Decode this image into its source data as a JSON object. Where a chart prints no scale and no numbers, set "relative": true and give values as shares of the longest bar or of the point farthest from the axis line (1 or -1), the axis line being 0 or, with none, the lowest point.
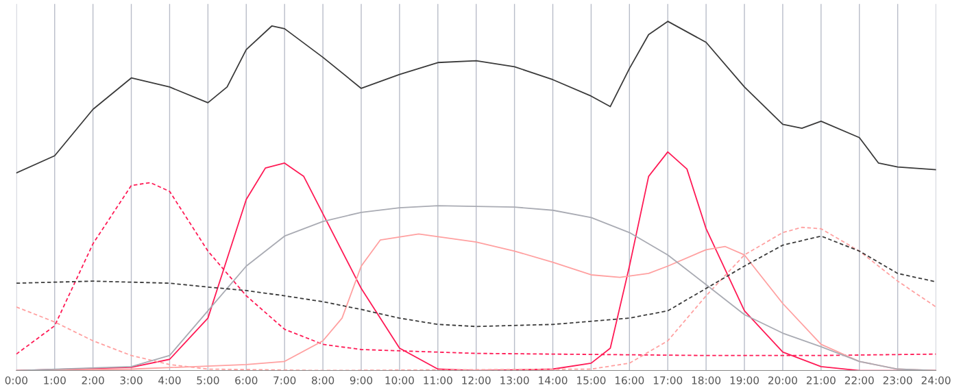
{
  "chart_data": {
    "type": "line",
    "relative": true,
    "grid": "x",
    "marker": "none",
    "xlim": [
      0,
      24
    ],
    "xticks": [
      {
        "value": 0,
        "label": "0:00"
      },
      {
        "value": 1,
        "label": "1:00"
      },
      {
        "value": 2,
        "label": "2:00"
      },
      {
        "value": 3,
        "label": "3:00"
      },
      {
        "value": 4,
        "label": "4:00"
      },
      {
        "value": 5,
        "label": "5:00"
      },
      {
        "value": 6,
        "label": "6:00"
      },
      {
        "value": 7,
        "label": "7:00"
      },
      {
        "value": 8,
        "label": "8:00"
      },
      {
        "value": 9,
        "label": "9:00"
      },
      {
        "value": 10,
        "label": "10:00"
      },
      {
        "value": 11,
        "label": "11:00"
      },
      {
        "value": 12,
        "label": "12:00"
      },
      {
        "value": 13,
        "label": "13:00"
      },
      {
        "value": 14,
        "label": "14:00"
      },
      {
        "value": 15,
        "label": "15:00"
      },
      {
        "value": 16,
        "label": "16:00"
      },
      {
        "value": 17,
        "label": "17:00"
      },
      {
        "value": 18,
        "label": "18:00"
      },
      {
        "value": 19,
        "label": "19:00"
      },
      {
        "value": 20,
        "label": "20:00"
      },
      {
        "value": 21,
        "label": "21:00"
      },
      {
        "value": 22,
        "label": "22:00"
      },
      {
        "value": 23,
        "label": "23:00"
      },
      {
        "value": 24,
        "label": "24:00"
      }
    ],
    "series": [
      {
        "color": "#3a3a3a",
        "line_style": "solid",
        "x": [
          0,
          1,
          2,
          3,
          4,
          5,
          5.5,
          6,
          6.67,
          7,
          8,
          9,
          10,
          11,
          12,
          13,
          14,
          15,
          15.5,
          16,
          16.5,
          17,
          18,
          19,
          20,
          20.5,
          21,
          22,
          22.5,
          23,
          24
        ],
        "values": [
          0.566,
          0.615,
          0.748,
          0.838,
          0.812,
          0.767,
          0.812,
          0.919,
          0.987,
          0.979,
          0.897,
          0.808,
          0.848,
          0.882,
          0.887,
          0.87,
          0.833,
          0.786,
          0.756,
          0.865,
          0.962,
          1.0,
          0.94,
          0.812,
          0.705,
          0.694,
          0.714,
          0.667,
          0.594,
          0.583,
          0.575
        ]
      },
      {
        "color": "#ff1a55",
        "line_style": "solid",
        "x": [
          0,
          3,
          4,
          5,
          5.5,
          6,
          6.5,
          7,
          7.5,
          8,
          9,
          10,
          11,
          12,
          14,
          15,
          15.5,
          16,
          16.5,
          17,
          17.5,
          18,
          19,
          20,
          21,
          22,
          24
        ],
        "values": [
          0,
          0.009,
          0.032,
          0.15,
          0.32,
          0.49,
          0.58,
          0.594,
          0.556,
          0.449,
          0.235,
          0.064,
          0.004,
          0,
          0.004,
          0.021,
          0.064,
          0.299,
          0.556,
          0.626,
          0.577,
          0.406,
          0.171,
          0.053,
          0.011,
          0,
          0
        ]
      },
      {
        "color": "#ff1a55",
        "line_style": "dashed",
        "x": [
          0,
          1,
          2,
          3,
          3.5,
          4,
          5,
          6,
          7,
          8,
          9,
          12,
          18,
          21,
          24
        ],
        "values": [
          0.047,
          0.128,
          0.363,
          0.53,
          0.538,
          0.513,
          0.342,
          0.214,
          0.118,
          0.075,
          0.06,
          0.049,
          0.043,
          0.043,
          0.047
        ]
      },
      {
        "color": "#ffa0a0",
        "line_style": "dashed",
        "x": [
          0,
          1,
          2,
          3,
          4,
          5,
          8,
          15,
          16,
          17,
          18,
          19,
          20,
          20.5,
          21,
          22,
          23,
          24
        ],
        "values": [
          0.182,
          0.139,
          0.085,
          0.043,
          0.017,
          0.004,
          0,
          0.004,
          0.021,
          0.085,
          0.214,
          0.331,
          0.395,
          0.41,
          0.406,
          0.342,
          0.256,
          0.182
        ]
      },
      {
        "color": "#ffa0a0",
        "line_style": "solid",
        "x": [
          0,
          3,
          6,
          7,
          8,
          8.5,
          9,
          9.5,
          10.5,
          12,
          13,
          14,
          15,
          15.75,
          16.5,
          17,
          18,
          18.5,
          19,
          20,
          21,
          22,
          23,
          24
        ],
        "values": [
          0,
          0.004,
          0.017,
          0.026,
          0.085,
          0.15,
          0.299,
          0.374,
          0.391,
          0.368,
          0.342,
          0.31,
          0.274,
          0.267,
          0.278,
          0.299,
          0.346,
          0.355,
          0.331,
          0.192,
          0.075,
          0.026,
          0.004,
          0
        ]
      },
      {
        "color": "#a9abb3",
        "line_style": "solid",
        "x": [
          0,
          3,
          4,
          5,
          6,
          7,
          8,
          9,
          10,
          11,
          12,
          13,
          14,
          15,
          16,
          17,
          18,
          19,
          20,
          21,
          22,
          23,
          24
        ],
        "values": [
          0,
          0.011,
          0.043,
          0.171,
          0.299,
          0.385,
          0.427,
          0.453,
          0.466,
          0.472,
          0.47,
          0.468,
          0.459,
          0.438,
          0.395,
          0.331,
          0.246,
          0.16,
          0.107,
          0.068,
          0.026,
          0.004,
          0
        ]
      },
      {
        "color": "#3a3a3a",
        "line_style": "dashed",
        "x": [
          0,
          2,
          4,
          5,
          6,
          7,
          8,
          9,
          10,
          11,
          12,
          14,
          16,
          17,
          18,
          19,
          20,
          21,
          22,
          23,
          24
        ],
        "values": [
          0.25,
          0.256,
          0.25,
          0.239,
          0.229,
          0.214,
          0.197,
          0.175,
          0.15,
          0.132,
          0.126,
          0.132,
          0.15,
          0.171,
          0.235,
          0.299,
          0.359,
          0.385,
          0.342,
          0.278,
          0.254
        ]
      }
    ]
  }
}
